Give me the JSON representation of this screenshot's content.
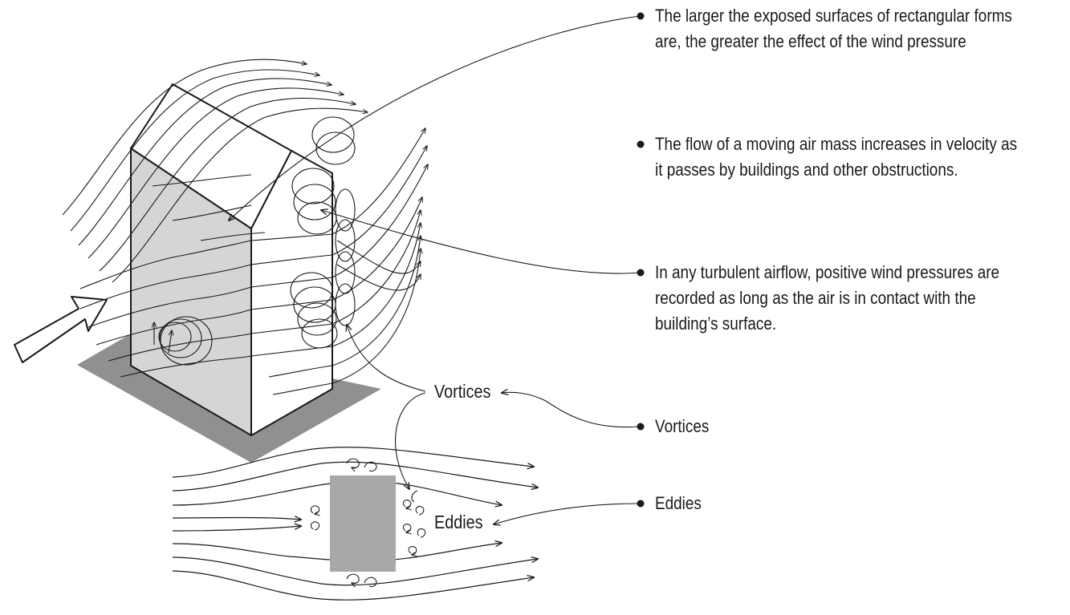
{
  "annotations": [
    {
      "id": "a1",
      "lines": [
        "The larger the exposed surfaces of rectangular forms",
        "are, the greater the effect of the wind pressure"
      ]
    },
    {
      "id": "a2",
      "lines": [
        "The flow of a moving air mass increases in velocity as",
        "it passes by buildings and other obstructions."
      ]
    },
    {
      "id": "a3",
      "lines": [
        "In any turbulent airflow, positive wind pressures are",
        "recorded as long as the air is in contact with the",
        "building’s surface."
      ]
    },
    {
      "id": "a4",
      "lines": [
        "Vortices"
      ]
    },
    {
      "id": "a5",
      "lines": [
        "Eddies"
      ]
    }
  ],
  "labels": {
    "vortices": "Vortices",
    "eddies": "Eddies"
  },
  "colors": {
    "line": "#1a1a1a",
    "building_side": "#d4d5d7",
    "shadow": "#8f9092",
    "plan_block": "#a7a8aa"
  }
}
